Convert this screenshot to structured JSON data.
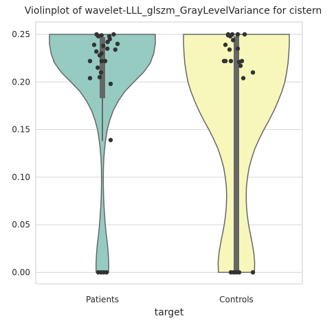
{
  "chart_data": {
    "type": "violin",
    "title": "Violinplot of wavelet-LLL_glszm_GrayLevelVariance for cistern",
    "xlabel": "target",
    "ylabel": "",
    "categories": [
      "Patients",
      "Controls"
    ],
    "ylim": [
      -0.012,
      0.263
    ],
    "yticks": [
      0.0,
      0.05,
      0.1,
      0.15,
      0.2,
      0.25
    ],
    "ytick_labels": [
      "0.00",
      "0.05",
      "0.10",
      "0.15",
      "0.20",
      "0.25"
    ],
    "grid": "horizontal",
    "legend": "none",
    "series": [
      {
        "category": "Patients",
        "color": "#96cbc1",
        "profile": [
          [
            0.0,
            0.118
          ],
          [
            0.01,
            0.12
          ],
          [
            0.02,
            0.11
          ],
          [
            0.03,
            0.095
          ],
          [
            0.04,
            0.073
          ],
          [
            0.05,
            0.055
          ],
          [
            0.06,
            0.042
          ],
          [
            0.07,
            0.03
          ],
          [
            0.08,
            0.022
          ],
          [
            0.09,
            0.018
          ],
          [
            0.1,
            0.017
          ],
          [
            0.11,
            0.02
          ],
          [
            0.12,
            0.027
          ],
          [
            0.13,
            0.042
          ],
          [
            0.14,
            0.063
          ],
          [
            0.15,
            0.092
          ],
          [
            0.16,
            0.14
          ],
          [
            0.17,
            0.205
          ],
          [
            0.18,
            0.3
          ],
          [
            0.19,
            0.425
          ],
          [
            0.2,
            0.595
          ],
          [
            0.21,
            0.775
          ],
          [
            0.22,
            0.905
          ],
          [
            0.23,
            0.97
          ],
          [
            0.24,
            1.0
          ],
          [
            0.25,
            1.0
          ]
        ],
        "iqr": [
          0.183,
          0.247
        ],
        "whisker": [
          0.138,
          0.25
        ],
        "points": [
          [
            -0.021,
            0.25
          ],
          [
            0.041,
            0.25
          ],
          [
            -0.003,
            0.249
          ],
          [
            -0.015,
            0.248
          ],
          [
            0.025,
            0.248
          ],
          [
            0.027,
            0.245
          ],
          [
            0.019,
            0.242
          ],
          [
            0.055,
            0.24
          ],
          [
            -0.03,
            0.239
          ],
          [
            0.003,
            0.238
          ],
          [
            0.018,
            0.235
          ],
          [
            0.047,
            0.234
          ],
          [
            -0.022,
            0.232
          ],
          [
            -0.003,
            0.23
          ],
          [
            -0.01,
            0.228
          ],
          [
            -0.003,
            0.222
          ],
          [
            0.01,
            0.222
          ],
          [
            -0.045,
            0.222
          ],
          [
            -0.017,
            0.215
          ],
          [
            -0.005,
            0.21
          ],
          [
            -0.01,
            0.205
          ],
          [
            0.03,
            0.198
          ],
          [
            -0.045,
            0.204
          ],
          [
            0.03,
            0.139
          ],
          [
            -0.015,
            0.0
          ],
          [
            -0.005,
            0.0
          ],
          [
            0.005,
            0.0
          ],
          [
            0.015,
            0.0
          ]
        ]
      },
      {
        "category": "Controls",
        "color": "#f7f7bb",
        "profile": [
          [
            0.0,
            0.34
          ],
          [
            0.01,
            0.345
          ],
          [
            0.02,
            0.33
          ],
          [
            0.03,
            0.3
          ],
          [
            0.04,
            0.265
          ],
          [
            0.05,
            0.23
          ],
          [
            0.06,
            0.205
          ],
          [
            0.07,
            0.19
          ],
          [
            0.08,
            0.185
          ],
          [
            0.09,
            0.19
          ],
          [
            0.1,
            0.21
          ],
          [
            0.11,
            0.24
          ],
          [
            0.12,
            0.29
          ],
          [
            0.13,
            0.35
          ],
          [
            0.14,
            0.43
          ],
          [
            0.15,
            0.52
          ],
          [
            0.16,
            0.62
          ],
          [
            0.17,
            0.71
          ],
          [
            0.18,
            0.79
          ],
          [
            0.19,
            0.86
          ],
          [
            0.2,
            0.915
          ],
          [
            0.21,
            0.95
          ],
          [
            0.22,
            0.975
          ],
          [
            0.23,
            0.99
          ],
          [
            0.24,
            1.0
          ],
          [
            0.25,
            1.0
          ]
        ],
        "iqr": [
          0.0,
          0.248
        ],
        "whisker": [
          0.0,
          0.25
        ],
        "points": [
          [
            -0.03,
            0.25
          ],
          [
            -0.015,
            0.25
          ],
          [
            0.005,
            0.25
          ],
          [
            -0.03,
            0.249
          ],
          [
            -0.022,
            0.248
          ],
          [
            0.03,
            0.25
          ],
          [
            -0.012,
            0.244
          ],
          [
            -0.04,
            0.239
          ],
          [
            0.005,
            0.235
          ],
          [
            -0.025,
            0.234
          ],
          [
            -0.045,
            0.222
          ],
          [
            -0.04,
            0.222
          ],
          [
            -0.02,
            0.222
          ],
          [
            0.02,
            0.222
          ],
          [
            0.01,
            0.221
          ],
          [
            0.015,
            0.217
          ],
          [
            0.06,
            0.21
          ],
          [
            0.025,
            0.204
          ],
          [
            -0.02,
            0.0
          ],
          [
            -0.01,
            0.0
          ],
          [
            0.0,
            0.0
          ],
          [
            0.01,
            0.0
          ],
          [
            0.06,
            0.0
          ]
        ]
      }
    ]
  }
}
